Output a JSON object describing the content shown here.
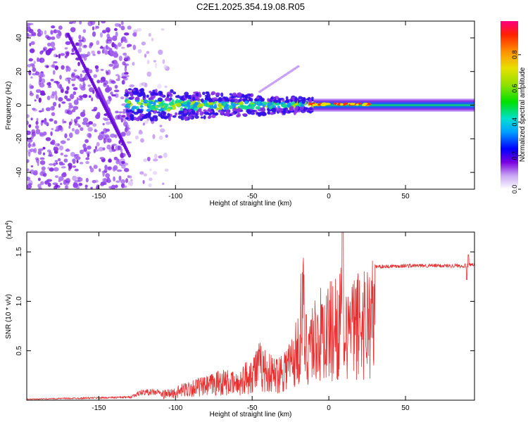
{
  "colors": {
    "signal": "#e83030",
    "frame": "#000000",
    "background": "#ffffff"
  },
  "chart_data": [
    {
      "type": "heatmap",
      "title": "C2E1.2025.354.19.08.R05",
      "xlabel": "Height of straight line (km)",
      "ylabel": "Frequency (Hz)",
      "xlim": [
        -197,
        95
      ],
      "ylim": [
        -50,
        50
      ],
      "x_ticks": [
        -150,
        -100,
        -50,
        0,
        50
      ],
      "y_ticks": [
        -40,
        -20,
        0,
        20,
        40
      ],
      "x_tick_labels": [
        "-150",
        "-100",
        "-50",
        "0",
        "50"
      ],
      "y_tick_labels": [
        "-40",
        "-20",
        "0",
        "20",
        "40"
      ],
      "colorbar": {
        "label": "Normalized spectral amplitude",
        "range": [
          0,
          1
        ],
        "ticks": [
          0.0,
          0.2,
          0.4,
          0.6,
          0.8
        ],
        "tick_labels": [
          "0.0",
          "0.2",
          "0.4",
          "0.6",
          "0.8"
        ]
      }
    },
    {
      "type": "line",
      "xlabel": "Height of straight line (km)",
      "ylabel": "SNR (10 * v/v)",
      "y_multiplier": "(x10",
      "y_multiplier_exp": "4",
      "y_multiplier_close": ")",
      "xlim": [
        -197,
        95
      ],
      "ylim": [
        0,
        1.7
      ],
      "x_ticks": [
        -150,
        -100,
        -50,
        0,
        50
      ],
      "y_ticks": [
        0.5,
        1.0,
        1.5
      ],
      "x_tick_labels": [
        "-150",
        "-100",
        "-50",
        "0",
        "50"
      ],
      "y_tick_labels": [
        "0.5",
        "1.0",
        "1.5"
      ],
      "series": [
        {
          "name": "SNR",
          "x": [
            -197,
            -130,
            -122,
            -112,
            -100,
            -90,
            -80,
            -70,
            -60,
            -50,
            -45,
            -40,
            -35,
            -30,
            -25,
            -20,
            -17,
            -15,
            -12,
            -10,
            -5,
            0,
            5,
            8,
            10,
            12,
            15,
            20,
            25,
            30,
            50,
            90,
            95
          ],
          "y": [
            0.01,
            0.03,
            0.08,
            0.08,
            0.12,
            0.2,
            0.22,
            0.3,
            0.25,
            0.45,
            0.55,
            0.45,
            0.4,
            0.5,
            0.6,
            0.8,
            1.5,
            0.85,
            1.0,
            0.95,
            1.05,
            1.1,
            1.2,
            1.25,
            0.5,
            1.2,
            1.1,
            1.25,
            1.3,
            1.35,
            1.36,
            1.36,
            1.37
          ]
        }
      ]
    }
  ]
}
